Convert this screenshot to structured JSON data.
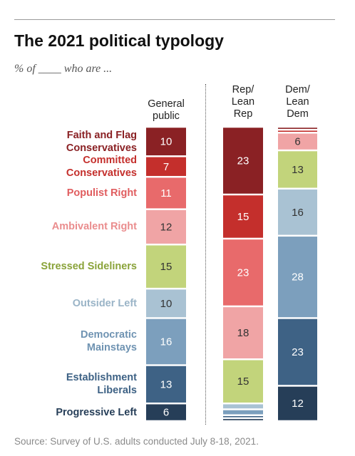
{
  "title": "The 2021 political typology",
  "subtitle": "% of ____ who are ...",
  "source": "Source: Survey of U.S. adults conducted July 8-18, 2021.",
  "colors": {
    "Faith and Flag Conservatives": "#8a2124",
    "Committed Conservatives": "#c42f2c",
    "Populist Right": "#e86a6b",
    "Ambivalent Right": "#f0a4a5",
    "Stressed Sideliners": "#c2d47b",
    "Outsider Left": "#a9c2d3",
    "Democratic Mainstays": "#7c9fbd",
    "Establishment Liberals": "#3e6285",
    "Progressive Left": "#263e58"
  },
  "label_colors": {
    "Faith and Flag Conservatives": "#8a2124",
    "Committed Conservatives": "#c42f2c",
    "Populist Right": "#e05d5f",
    "Ambivalent Right": "#ea8d8e",
    "Stressed Sideliners": "#8aa33a",
    "Outsider Left": "#9ab4c7",
    "Democratic Mainstays": "#6f93b2",
    "Establishment Liberals": "#3e6285",
    "Progressive Left": "#263e58"
  },
  "chart_data": {
    "type": "bar",
    "stacked": true,
    "orientation": "vertical",
    "categories": [
      "General public",
      "Rep/ Lean Rep",
      "Dem/ Lean Dem"
    ],
    "category_lines": [
      [
        "General",
        "public"
      ],
      [
        "Rep/",
        "Lean",
        "Rep"
      ],
      [
        "Dem/",
        "Lean",
        "Dem"
      ]
    ],
    "series": [
      {
        "name": "Faith and Flag Conservatives",
        "lines": [
          "Faith and Flag",
          "Conservatives"
        ],
        "values": [
          10,
          23,
          1
        ]
      },
      {
        "name": "Committed Conservatives",
        "lines": [
          "Committed",
          "Conservatives"
        ],
        "values": [
          7,
          15,
          1
        ]
      },
      {
        "name": "Populist Right",
        "lines": [
          "Populist Right"
        ],
        "values": [
          11,
          23,
          0
        ]
      },
      {
        "name": "Ambivalent Right",
        "lines": [
          "Ambivalent Right"
        ],
        "values": [
          12,
          18,
          6
        ]
      },
      {
        "name": "Stressed Sideliners",
        "lines": [
          "Stressed Sideliners"
        ],
        "values": [
          15,
          15,
          13
        ]
      },
      {
        "name": "Outsider Left",
        "lines": [
          "Outsider Left"
        ],
        "values": [
          10,
          2,
          16
        ]
      },
      {
        "name": "Democratic Mainstays",
        "lines": [
          "Democratic",
          "Mainstays"
        ],
        "values": [
          16,
          2,
          28
        ]
      },
      {
        "name": "Establishment Liberals",
        "lines": [
          "Establishment",
          "Liberals"
        ],
        "values": [
          13,
          1,
          23
        ]
      },
      {
        "name": "Progressive Left",
        "lines": [
          "Progressive Left"
        ],
        "values": [
          6,
          1,
          12
        ]
      }
    ],
    "unit": "%",
    "grid": false,
    "legend": "left"
  }
}
